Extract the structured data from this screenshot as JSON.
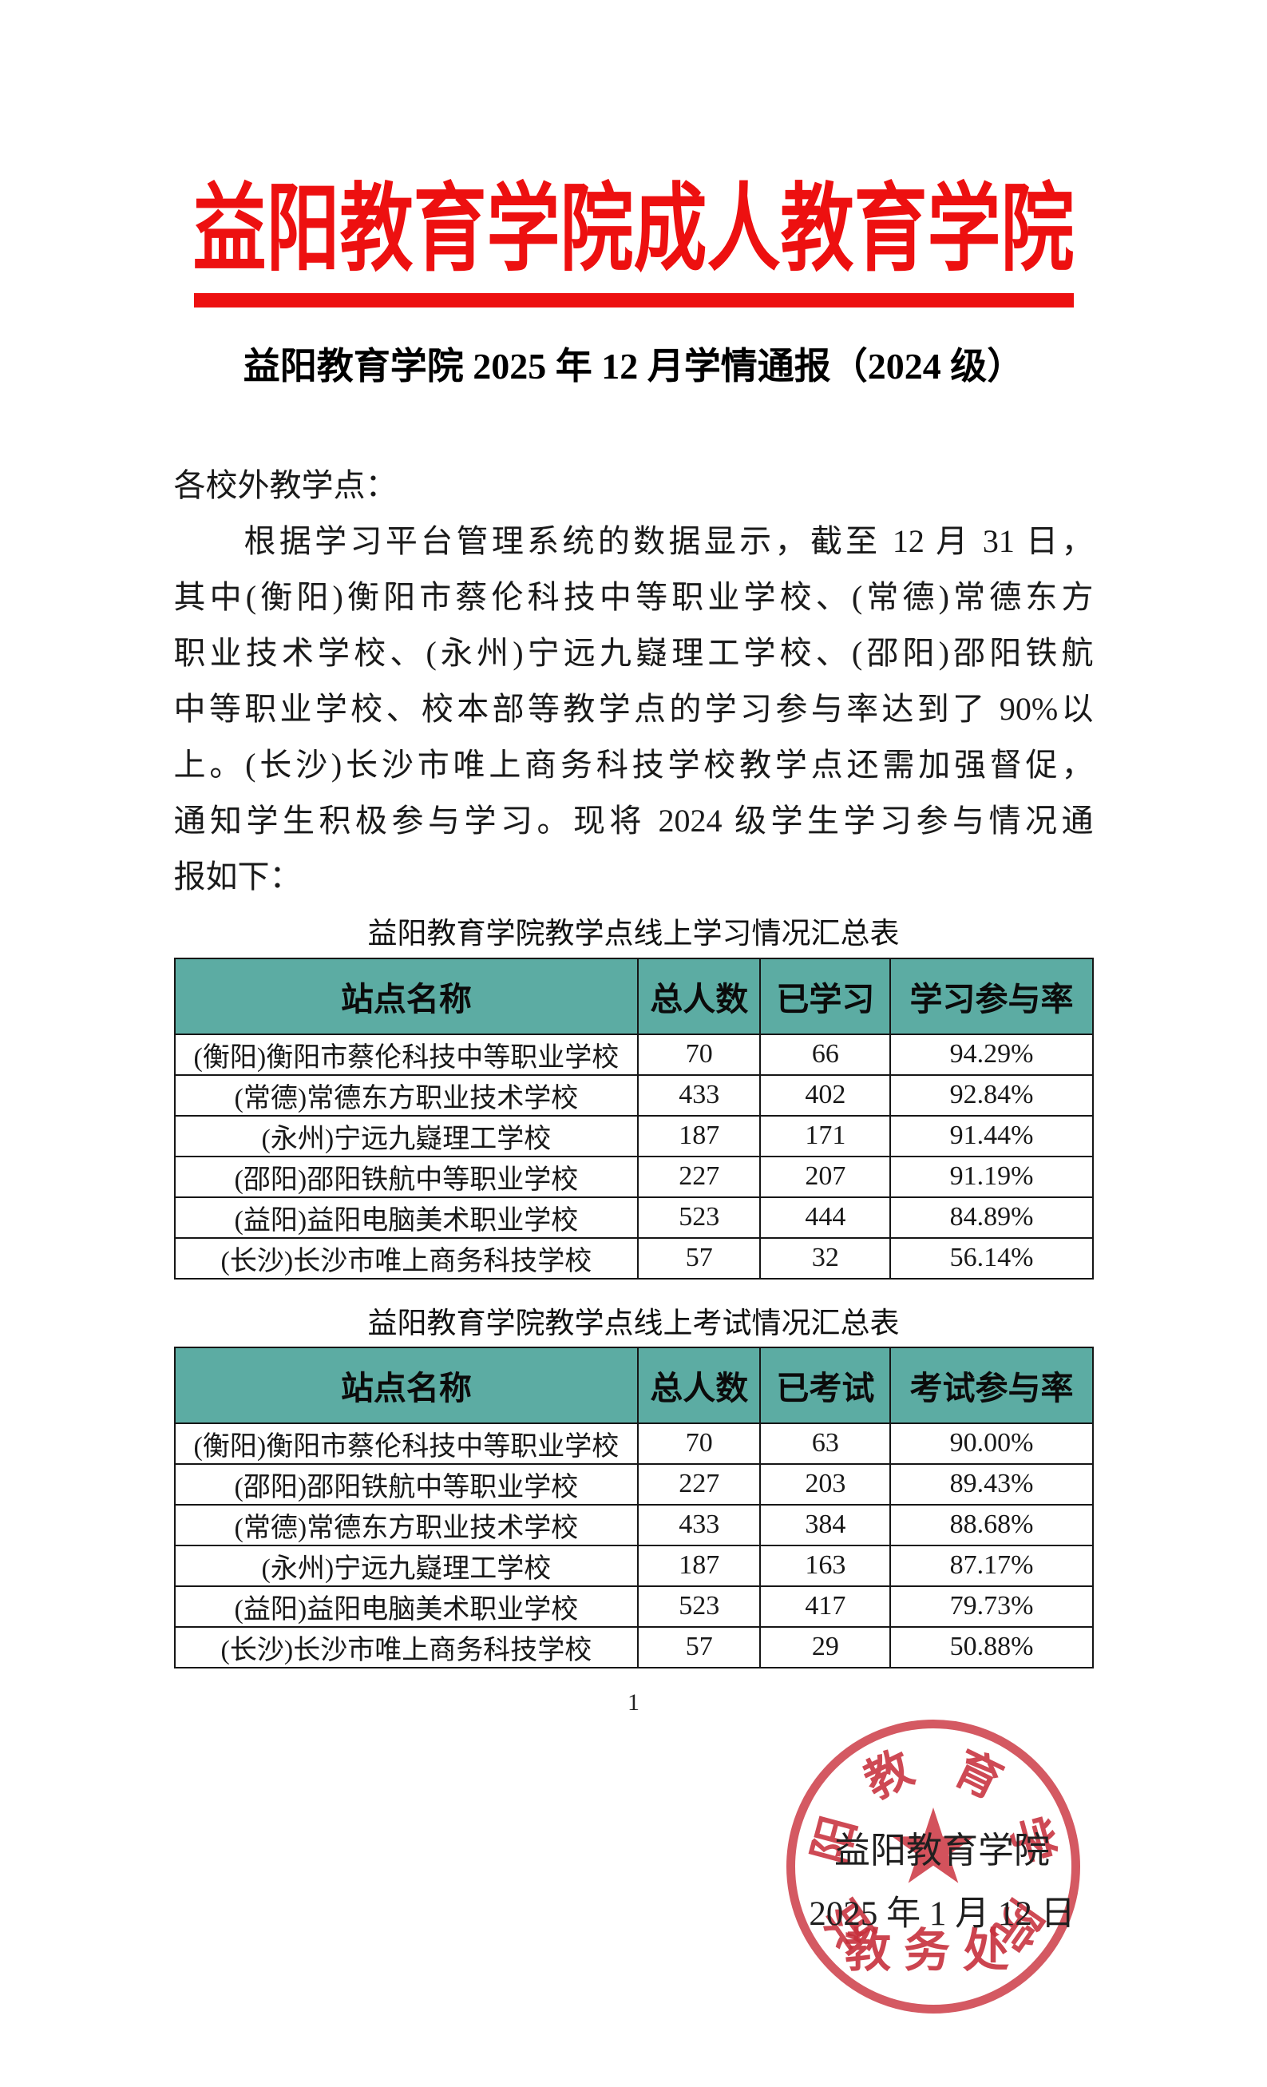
{
  "page": {
    "banner_title": "益阳教育学院成人教育学院",
    "doc_title": "益阳教育学院 2025 年 12 月学情通报（2024 级）",
    "salutation": "各校外教学点：",
    "paragraph_lines": [
      "根据学习平台管理系统的数据显示，截至 12 月 31 日，",
      "其中(衡阳)衡阳市蔡伦科技中等职业学校、(常德)常德东方",
      "职业技术学校、(永州)宁远九嶷理工学校、(邵阳)邵阳铁航",
      "中等职业学校、校本部等教学点的学习参与率达到了 90%以",
      "上。(长沙)长沙市唯上商务科技学校教学点还需加强督促，",
      "通知学生积极参与学习。现将 2024 级学生学习参与情况通",
      "报如下："
    ],
    "page_number": "1"
  },
  "study_table": {
    "title": "益阳教育学院教学点线上学习情况汇总表",
    "headers": [
      "站点名称",
      "总人数",
      "已学习",
      "学习参与率"
    ],
    "rows": [
      [
        "(衡阳)衡阳市蔡伦科技中等职业学校",
        "70",
        "66",
        "94.29%"
      ],
      [
        "(常德)常德东方职业技术学校",
        "433",
        "402",
        "92.84%"
      ],
      [
        "(永州)宁远九嶷理工学校",
        "187",
        "171",
        "91.44%"
      ],
      [
        "(邵阳)邵阳铁航中等职业学校",
        "227",
        "207",
        "91.19%"
      ],
      [
        "(益阳)益阳电脑美术职业学校",
        "523",
        "444",
        "84.89%"
      ],
      [
        "(长沙)长沙市唯上商务科技学校",
        "57",
        "32",
        "56.14%"
      ]
    ]
  },
  "exam_table": {
    "title": "益阳教育学院教学点线上考试情况汇总表",
    "headers": [
      "站点名称",
      "总人数",
      "已考试",
      "考试参与率"
    ],
    "rows": [
      [
        "(衡阳)衡阳市蔡伦科技中等职业学校",
        "70",
        "63",
        "90.00%"
      ],
      [
        "(邵阳)邵阳铁航中等职业学校",
        "227",
        "203",
        "89.43%"
      ],
      [
        "(常德)常德东方职业技术学校",
        "433",
        "384",
        "88.68%"
      ],
      [
        "(永州)宁远九嶷理工学校",
        "187",
        "163",
        "87.17%"
      ],
      [
        "(益阳)益阳电脑美术职业学校",
        "523",
        "417",
        "79.73%"
      ],
      [
        "(长沙)长沙市唯上商务科技学校",
        "57",
        "29",
        "50.88%"
      ]
    ]
  },
  "signature": {
    "name": "益阳教育学院",
    "date": "2025 年 1 月 12 日"
  },
  "stamp": {
    "ring_chars": [
      "益",
      "阳",
      "教",
      "育",
      "学",
      "院"
    ],
    "bottom_text": "教务处"
  },
  "colors": {
    "brand_red": "#ed1010",
    "table_header_teal": "#5caca3",
    "seal_red": "#c93440"
  }
}
